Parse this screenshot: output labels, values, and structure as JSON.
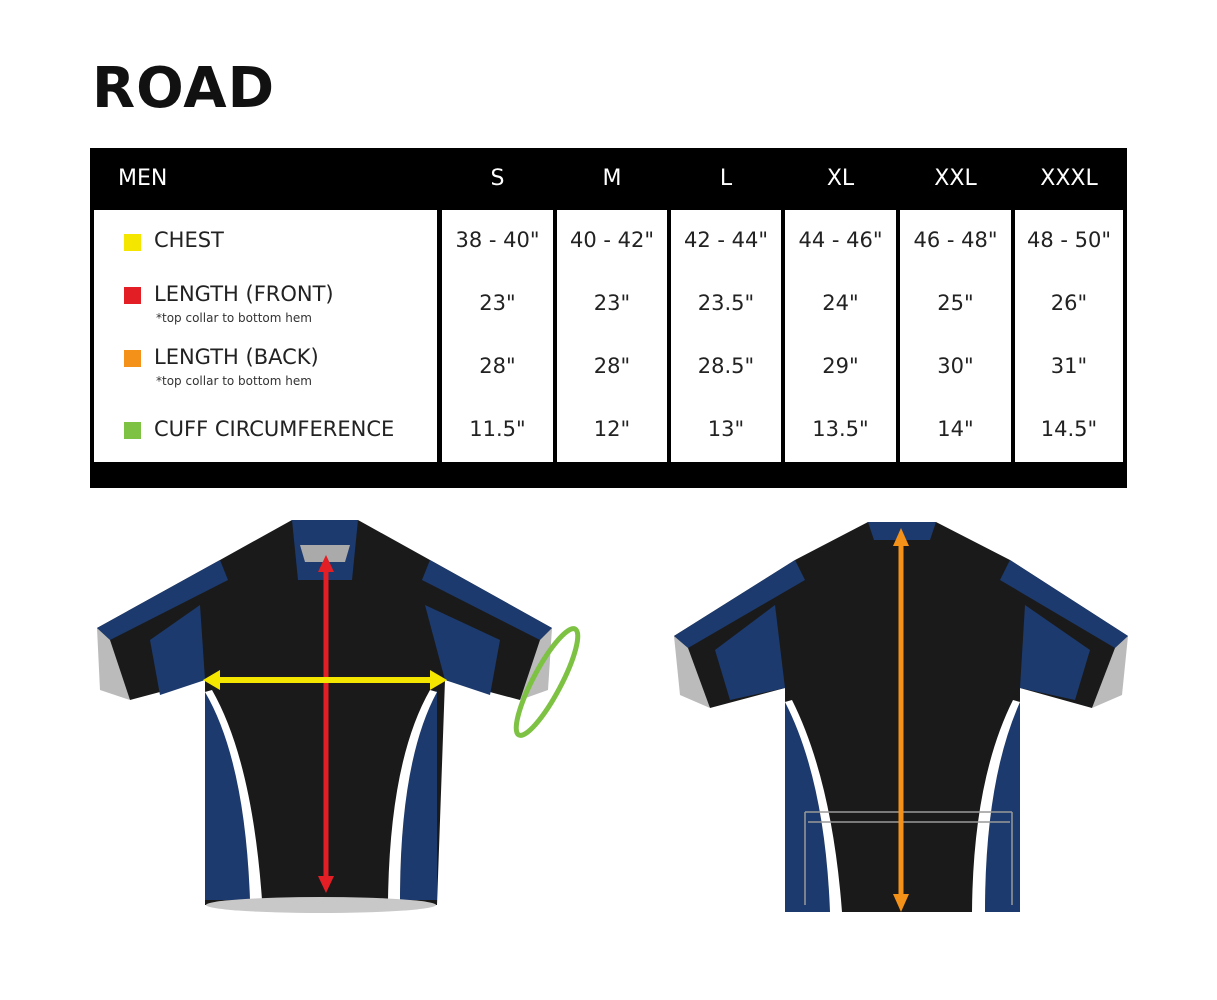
{
  "title": "ROAD",
  "table": {
    "header_label": "MEN",
    "sizes": [
      "S",
      "M",
      "L",
      "XL",
      "XXL",
      "XXXL"
    ],
    "rows": [
      {
        "label": "CHEST",
        "note": "",
        "color": "#f5e600",
        "values": [
          "38 - 40\"",
          "40 - 42\"",
          "42 - 44\"",
          "44 - 46\"",
          "46 - 48\"",
          "48 - 50\""
        ]
      },
      {
        "label": "LENGTH (FRONT)",
        "note": "*top collar to bottom hem",
        "color": "#e31e24",
        "values": [
          "23\"",
          "23\"",
          "23.5\"",
          "24\"",
          "25\"",
          "26\""
        ]
      },
      {
        "label": "LENGTH (BACK)",
        "note": "*top collar to bottom hem",
        "color": "#f39119",
        "values": [
          "28\"",
          "28\"",
          "28.5\"",
          "29\"",
          "30\"",
          "31\""
        ]
      },
      {
        "label": "CUFF CIRCUMFERENCE",
        "note": "",
        "color": "#7dc242",
        "values": [
          "11.5\"",
          "12\"",
          "13\"",
          "13.5\"",
          "14\"",
          "14.5\""
        ]
      }
    ]
  },
  "colors": {
    "jersey_body": "#1a1a1a",
    "jersey_panel": "#1c3a6e",
    "chest_arrow": "#f5e600",
    "front_arrow": "#e31e24",
    "back_arrow": "#f39119",
    "cuff_ring": "#7dc242"
  }
}
